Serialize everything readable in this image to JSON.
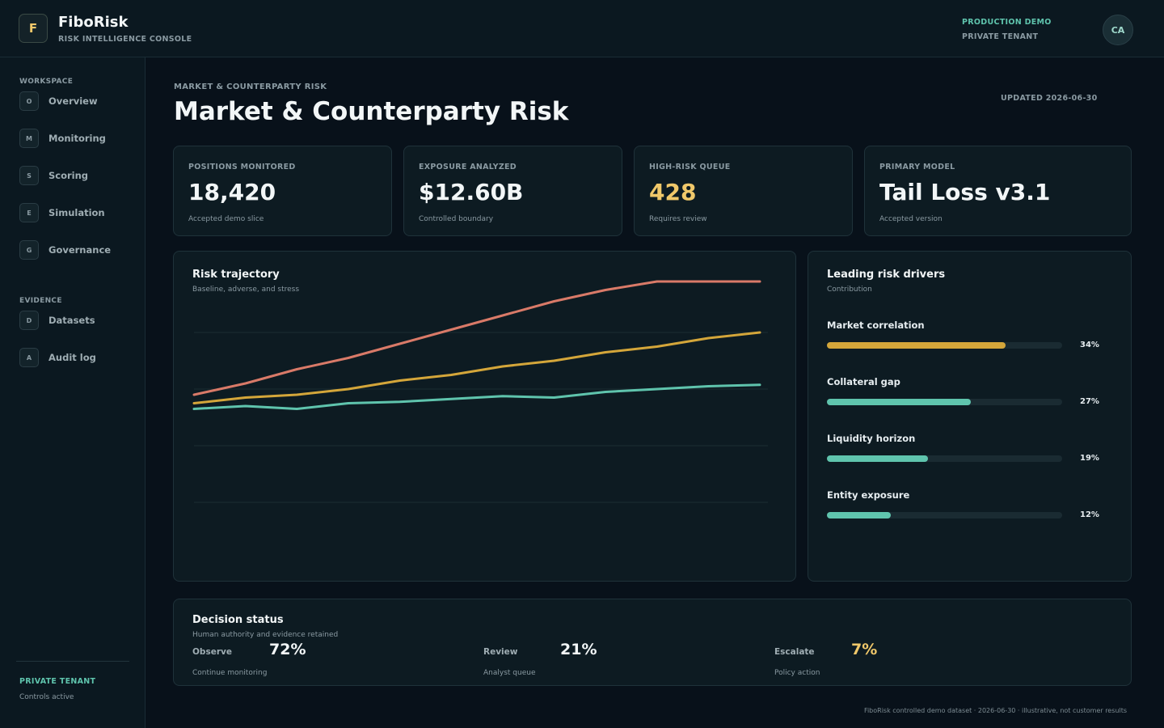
{
  "app": {
    "logo_letter": "F",
    "name": "FiboRisk",
    "subtitle": "RISK INTELLIGENCE CONSOLE",
    "environment": "PRODUCTION DEMO",
    "tenant": "PRIVATE TENANT",
    "user_initials": "CA"
  },
  "sidebar": {
    "workspace_label": "WORKSPACE",
    "workspace_items": [
      {
        "icon": "O",
        "label": "Overview"
      },
      {
        "icon": "M",
        "label": "Monitoring"
      },
      {
        "icon": "S",
        "label": "Scoring"
      },
      {
        "icon": "E",
        "label": "Simulation"
      },
      {
        "icon": "G",
        "label": "Governance"
      }
    ],
    "evidence_label": "EVIDENCE",
    "evidence_items": [
      {
        "icon": "D",
        "label": "Datasets"
      },
      {
        "icon": "A",
        "label": "Audit log"
      }
    ],
    "footer_tenant": "PRIVATE TENANT",
    "footer_status": "Controls active"
  },
  "header": {
    "breadcrumb": "MARKET & COUNTERPARTY RISK",
    "title": "Market & Counterparty Risk",
    "updated": "UPDATED 2026-06-30"
  },
  "kpis": [
    {
      "label": "POSITIONS MONITORED",
      "value": "18,420",
      "note": "Accepted demo slice"
    },
    {
      "label": "EXPOSURE ANALYZED",
      "value": "$12.60B",
      "note": "Controlled boundary"
    },
    {
      "label": "HIGH-RISK QUEUE",
      "value": "428",
      "note": "Requires review"
    },
    {
      "label": "PRIMARY MODEL",
      "value": "Tail Loss v3.1",
      "note": "Accepted version"
    }
  ],
  "trajectory": {
    "title": "Risk trajectory",
    "subtitle": "Baseline, adverse, and stress"
  },
  "chart_data": {
    "type": "line",
    "title": "Risk trajectory",
    "subtitle": "Baseline, adverse, and stress",
    "x": [
      0,
      1,
      2,
      3,
      4,
      5,
      6,
      7,
      8,
      9,
      10,
      11
    ],
    "ylim": [
      0,
      100
    ],
    "grid": true,
    "series": [
      {
        "color": "#d97a68",
        "values": [
          58,
          62,
          67,
          71,
          76,
          81,
          86,
          91,
          95,
          98,
          98,
          98
        ]
      },
      {
        "color": "#d4a63a",
        "values": [
          55,
          57,
          58,
          60,
          63,
          65,
          68,
          70,
          73,
          75,
          78,
          80
        ]
      },
      {
        "color": "#5fc4ad",
        "values": [
          53,
          54,
          53,
          55,
          55.5,
          56.5,
          57.5,
          57,
          59,
          60,
          61,
          61.5
        ]
      }
    ]
  },
  "drivers": {
    "title": "Leading risk drivers",
    "subtitle": "Contribution",
    "items": [
      {
        "name": "Market correlation",
        "pct": "34%",
        "fill": 0.76,
        "color": "#d4a63a"
      },
      {
        "name": "Collateral gap",
        "pct": "27%",
        "fill": 0.61,
        "color": "#5fc4ad"
      },
      {
        "name": "Liquidity horizon",
        "pct": "19%",
        "fill": 0.43,
        "color": "#5fc4ad"
      },
      {
        "name": "Entity exposure",
        "pct": "12%",
        "fill": 0.27,
        "color": "#5fc4ad"
      }
    ]
  },
  "decision": {
    "title": "Decision status",
    "subtitle": "Human authority and evidence retained",
    "items": [
      {
        "label": "Observe",
        "value": "72%",
        "note": "Continue monitoring"
      },
      {
        "label": "Review",
        "value": "21%",
        "note": "Analyst queue"
      },
      {
        "label": "Escalate",
        "value": "7%",
        "note": "Policy action"
      }
    ]
  },
  "footer": "FiboRisk controlled demo dataset · 2026-06-30 · illustrative, not customer results"
}
